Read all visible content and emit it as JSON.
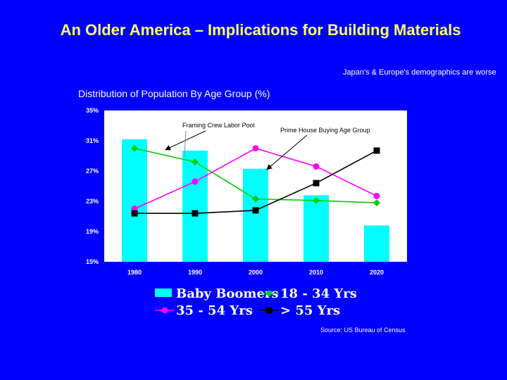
{
  "slide": {
    "title": "An Older America – Implications for Building Materials",
    "subtitle": "Distribution of Population By Age Group (%)",
    "side_note": "Japan's & Europe's demographics are worse",
    "source": "Source: US Bureau of Census"
  },
  "colors": {
    "background": "#0000ff",
    "title": "#ffff66",
    "plot_bg": "#ffffff",
    "baby_boomers": "#00ffff",
    "age_18_34": "#00cc00",
    "age_35_54": "#ff00ff",
    "age_55_plus": "#000000"
  },
  "chart_data": {
    "type": "bar+line",
    "title": "Distribution of Population By Age Group (%)",
    "categories": [
      "1980",
      "1990",
      "2000",
      "2010",
      "2020"
    ],
    "ylim": [
      15,
      35
    ],
    "yticks": [
      "15%",
      "19%",
      "23%",
      "27%",
      "31%",
      "35%"
    ],
    "ytick_values": [
      15,
      19,
      23,
      27,
      31,
      35
    ],
    "series": [
      {
        "name": "Baby Boomers",
        "kind": "bar",
        "values": [
          31.2,
          29.7,
          27.3,
          23.8,
          19.8
        ]
      },
      {
        "name": "18 - 34 Yrs",
        "kind": "line",
        "marker": "diamond",
        "values": [
          30.0,
          28.2,
          23.3,
          23.1,
          22.8
        ]
      },
      {
        "name": "35 - 54 Yrs",
        "kind": "line",
        "marker": "circle",
        "values": [
          22.0,
          25.6,
          30.0,
          27.6,
          23.7
        ]
      },
      {
        "name": "> 55 Yrs",
        "kind": "line",
        "marker": "square",
        "values": [
          21.4,
          21.4,
          21.8,
          25.4,
          29.7
        ]
      }
    ],
    "annotations": [
      {
        "text": "Framing Crew Labor Pool",
        "target": "18 - 34 Yrs"
      },
      {
        "text": "Prime House Buying Age Group",
        "target": "Baby Boomers"
      }
    ],
    "legend": {
      "position": "bottom"
    }
  }
}
